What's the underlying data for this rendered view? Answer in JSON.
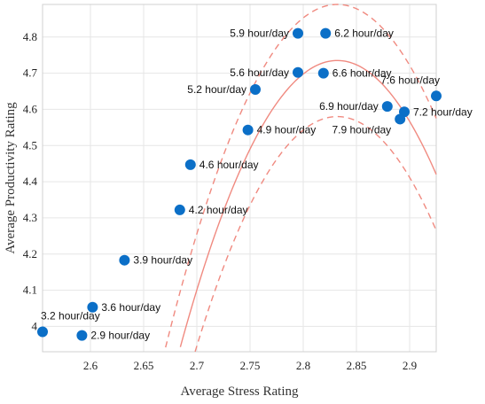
{
  "chart_data": {
    "type": "scatter",
    "xlabel": "Average Stress Rating",
    "ylabel": "Average Productivity Rating",
    "xlim": [
      2.555,
      2.925
    ],
    "ylim": [
      3.93,
      4.89
    ],
    "xticks": [
      "2.6",
      "2.65",
      "2.7",
      "2.75",
      "2.8",
      "2.85",
      "2.9"
    ],
    "xtick_values": [
      2.6,
      2.65,
      2.7,
      2.75,
      2.8,
      2.85,
      2.9
    ],
    "yticks": [
      "4",
      "4.1",
      "4.2",
      "4.3",
      "4.4",
      "4.5",
      "4.6",
      "4.7",
      "4.8"
    ],
    "ytick_values": [
      4.0,
      4.1,
      4.2,
      4.3,
      4.4,
      4.5,
      4.6,
      4.7,
      4.8
    ],
    "grid": true,
    "colors": {
      "points": "#0b6fc7",
      "fit": "#f08a80",
      "grid": "#e6e6e6"
    },
    "points": [
      {
        "x": 2.555,
        "y": 3.985,
        "label": "3.2 hour/day",
        "label_pos": "above"
      },
      {
        "x": 2.592,
        "y": 3.975,
        "label": "2.9 hour/day",
        "label_pos": "right"
      },
      {
        "x": 2.602,
        "y": 4.053,
        "label": "3.6 hour/day",
        "label_pos": "right"
      },
      {
        "x": 2.632,
        "y": 4.183,
        "label": "3.9 hour/day",
        "label_pos": "right"
      },
      {
        "x": 2.684,
        "y": 4.322,
        "label": "4.2 hour/day",
        "label_pos": "right"
      },
      {
        "x": 2.694,
        "y": 4.447,
        "label": "4.6 hour/day",
        "label_pos": "right"
      },
      {
        "x": 2.748,
        "y": 4.543,
        "label": "4.9 hour/day",
        "label_pos": "right"
      },
      {
        "x": 2.755,
        "y": 4.655,
        "label": "5.2 hour/day",
        "label_pos": "left"
      },
      {
        "x": 2.795,
        "y": 4.702,
        "label": "5.6 hour/day",
        "label_pos": "left"
      },
      {
        "x": 2.795,
        "y": 4.81,
        "label": "5.9 hour/day",
        "label_pos": "left"
      },
      {
        "x": 2.821,
        "y": 4.81,
        "label": "6.2 hour/day",
        "label_pos": "right"
      },
      {
        "x": 2.819,
        "y": 4.7,
        "label": "6.6 hour/day",
        "label_pos": "right"
      },
      {
        "x": 2.879,
        "y": 4.608,
        "label": "6.9 hour/day",
        "label_pos": "left"
      },
      {
        "x": 2.895,
        "y": 4.593,
        "label": "7.2 hour/day",
        "label_pos": "right"
      },
      {
        "x": 2.891,
        "y": 4.573,
        "label": "7.9 hour/day",
        "label_pos": "left-below"
      },
      {
        "x": 2.925,
        "y": 4.637,
        "label": "7.6 hour/day",
        "label_pos": "above-left"
      }
    ],
    "fit": {
      "type": "quadratic",
      "vertex_x": 2.832,
      "vertex_y": 4.735,
      "curvature": -36.4,
      "band": 0.155
    }
  }
}
